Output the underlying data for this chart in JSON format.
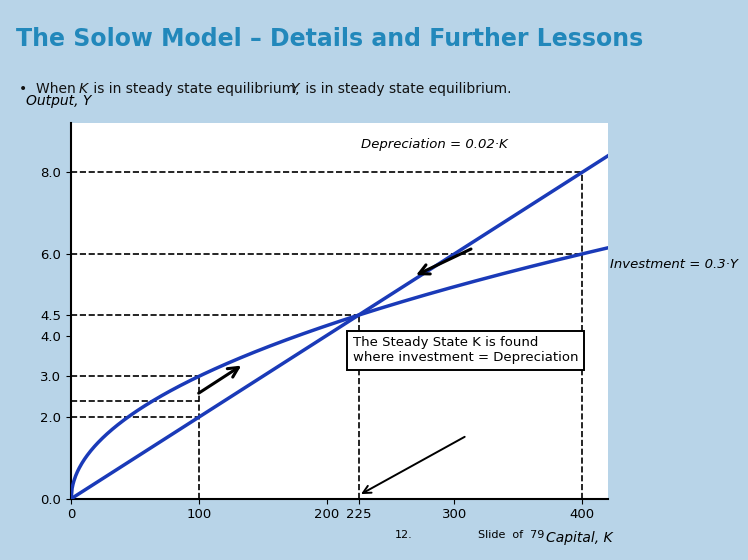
{
  "title": "The Solow Model – Details and Further Lessons",
  "title_color": "#2288BB",
  "title_bg_color": "#B8D4E8",
  "bullet_text": "When K is in steady state equilibrium, Y is in steady state equilibrium.",
  "bullet_bg_color": "#E8F0F5",
  "chart_bg_color": "#FFFFFF",
  "outer_bg_color": "#B8D4E8",
  "right_bg_color": "#C8D8C0",
  "line_color": "#1A3AB8",
  "line_width": 2.5,
  "xlabel": "Capital, K",
  "ylabel": "Output, Y",
  "xticks": [
    0,
    100,
    200,
    225,
    300,
    400
  ],
  "yticks": [
    0,
    2,
    3,
    4,
    4.5,
    6,
    8
  ],
  "xmax": 420,
  "ymax": 9.2,
  "depr_label": "Depreciation = 0.02·K",
  "inv_label": "Investment = 0.3·Y",
  "steady_state_line1": "The Steady State K is found",
  "steady_state_line2": "where investment = Depreciation",
  "steady_x": 225,
  "steady_y": 4.5,
  "slide_label": "12.",
  "slide_of": "Slide  of  79"
}
